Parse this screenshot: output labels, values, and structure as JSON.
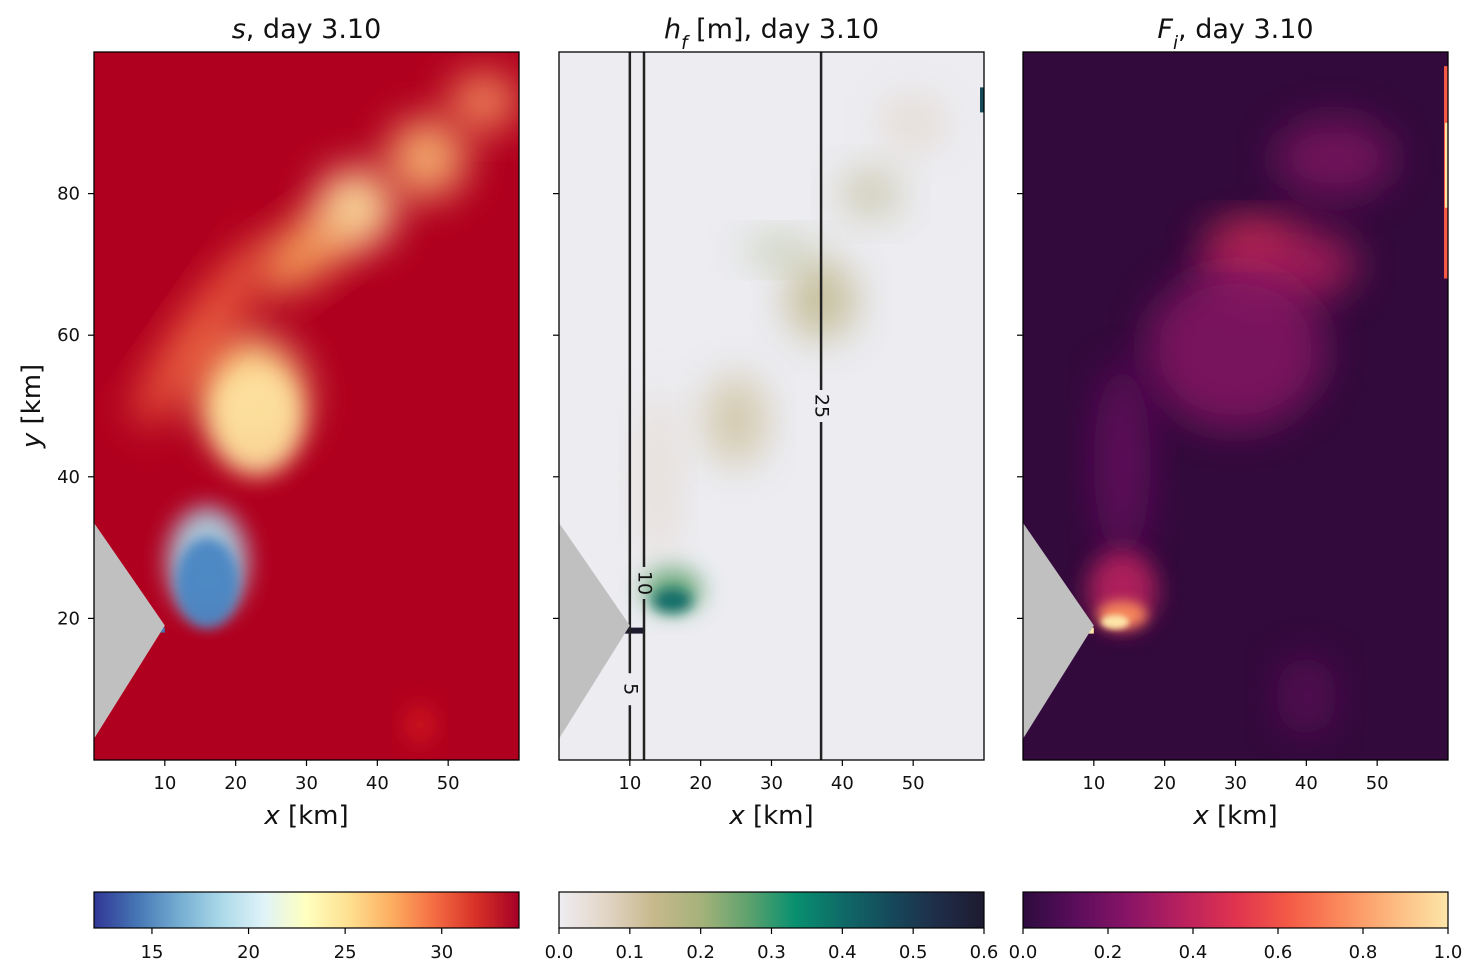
{
  "chart_data": [
    {
      "type": "heatmap",
      "title": "s, day 3.10",
      "title_parts": {
        "var": "s",
        "sub": "",
        "rest": ", day 3.10"
      },
      "xlabel_parts": {
        "var": "x",
        "rest": " [km]"
      },
      "ylabel_parts": {
        "var": "y",
        "rest": " [km]"
      },
      "xlim": [
        0,
        60
      ],
      "ylim": [
        0,
        100
      ],
      "xticks": [
        10,
        20,
        30,
        40,
        50
      ],
      "yticks": [
        20,
        40,
        60,
        80
      ],
      "show_ytick_labels": true,
      "colormap": "RdYlBu_r",
      "colorbar": {
        "range": [
          12,
          34
        ],
        "ticks": [
          15,
          20,
          25,
          30
        ],
        "tick_labels": [
          "15",
          "20",
          "25",
          "30"
        ],
        "colors": [
          "#313695",
          "#4575b4",
          "#74add1",
          "#abd9e9",
          "#e0f3f8",
          "#ffffbf",
          "#fee090",
          "#fdae61",
          "#f46d43",
          "#d73027",
          "#a50026"
        ]
      },
      "background_color": "#b0001f",
      "contours": []
    },
    {
      "type": "heatmap",
      "title": "h_f [m], day 3.10",
      "title_parts": {
        "var": "h",
        "sub": "f",
        "rest": " [m], day 3.10"
      },
      "xlabel_parts": {
        "var": "x",
        "rest": " [km]"
      },
      "ylabel_parts": {
        "var": "",
        "rest": ""
      },
      "xlim": [
        0,
        60
      ],
      "ylim": [
        0,
        100
      ],
      "xticks": [
        10,
        20,
        30,
        40,
        50
      ],
      "yticks": [
        20,
        40,
        60,
        80
      ],
      "show_ytick_labels": false,
      "colormap": "cmocean.rain",
      "colorbar": {
        "range": [
          0,
          0.6
        ],
        "ticks": [
          0,
          0.1,
          0.2,
          0.3,
          0.4,
          0.5,
          0.6
        ],
        "tick_labels": [
          "0.0",
          "0.1",
          "0.2",
          "0.3",
          "0.4",
          "0.5",
          "0.6"
        ],
        "colors": [
          "#eeedf2",
          "#e2d5c6",
          "#c7b98c",
          "#a6b27a",
          "#5fa26e",
          "#08906f",
          "#0f6a67",
          "#154a5b",
          "#1f2d48",
          "#1e1a30"
        ]
      },
      "background_color": "#ececf1",
      "contours": [
        {
          "x": 10,
          "label": "5",
          "label_y": 10
        },
        {
          "x": 12,
          "label": "10",
          "label_y": 25
        },
        {
          "x": 37,
          "label": "25",
          "label_y": 50
        }
      ]
    },
    {
      "type": "heatmap",
      "title": "F_i, day 3.10",
      "title_parts": {
        "var": "F",
        "sub": "i",
        "rest": ", day 3.10"
      },
      "xlabel_parts": {
        "var": "x",
        "rest": " [km]"
      },
      "ylabel_parts": {
        "var": "",
        "rest": ""
      },
      "xlim": [
        0,
        60
      ],
      "ylim": [
        0,
        100
      ],
      "xticks": [
        10,
        20,
        30,
        40,
        50
      ],
      "yticks": [
        20,
        40,
        60,
        80
      ],
      "show_ytick_labels": false,
      "colormap": "magma",
      "colorbar": {
        "range": [
          0,
          1
        ],
        "ticks": [
          0,
          0.2,
          0.4,
          0.6,
          0.8,
          1.0
        ],
        "tick_labels": [
          "0.0",
          "0.2",
          "0.4",
          "0.6",
          "0.8",
          "1.0"
        ],
        "colors": [
          "#2d0b3e",
          "#5b0d5c",
          "#8a1466",
          "#b9215e",
          "#e0334f",
          "#f45a46",
          "#fb8b5c",
          "#fdbb81",
          "#fde5a8"
        ]
      },
      "background_color": "#320a3c",
      "contours": []
    }
  ]
}
